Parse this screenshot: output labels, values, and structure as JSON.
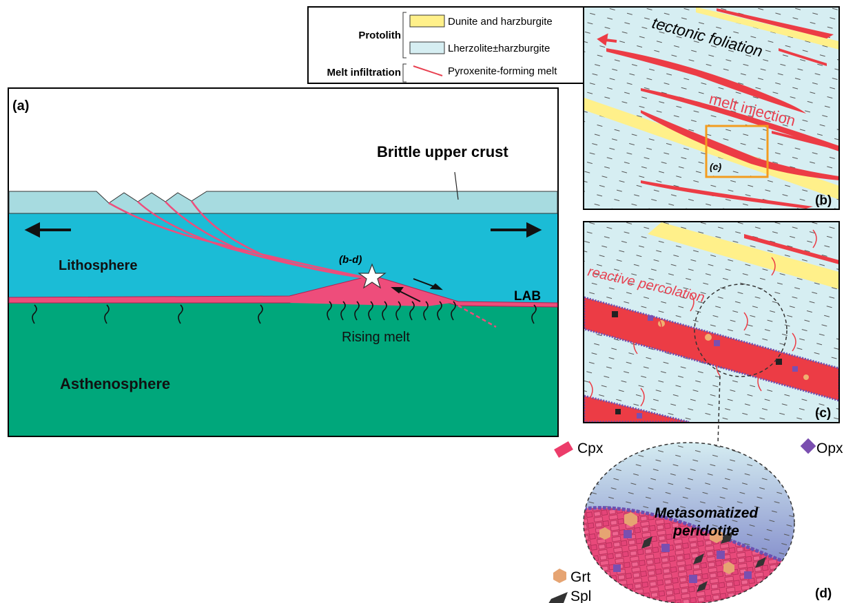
{
  "legend": {
    "groups": [
      {
        "label": "Protolith",
        "items": [
          "Dunite and harzburgite",
          "Lherzolite±harzburgite"
        ]
      },
      {
        "label": "Melt infiltration",
        "items": [
          "Pyroxenite-forming melt"
        ]
      }
    ]
  },
  "panel_a": {
    "label": "(a)",
    "crust": "Brittle upper crust",
    "lithosphere": "Lithosphere",
    "star": "(b-d)",
    "lab": "LAB",
    "rising": "Rising melt",
    "asthenosphere": "Asthenosphere"
  },
  "panel_b": {
    "label": "(b)",
    "foliation": "tectonic foliation",
    "injection": "melt injection",
    "inset": "(c)"
  },
  "panel_c": {
    "label": "(c)",
    "percolation": "reactive percolation"
  },
  "panel_d": {
    "label": "(d)",
    "title": [
      "Metasomatized",
      "peridotite"
    ],
    "cpx": "Cpx",
    "opx": "Opx",
    "grt": "Grt",
    "spl": "Spl"
  }
}
